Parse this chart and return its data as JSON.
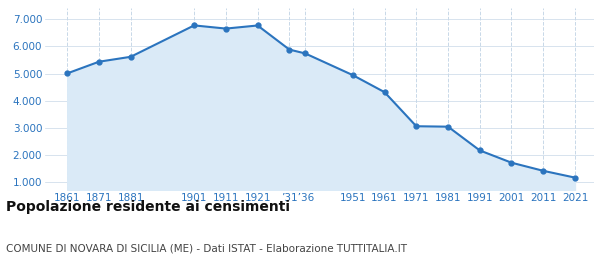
{
  "years": [
    1861,
    1871,
    1881,
    1901,
    1911,
    1921,
    1931,
    1936,
    1951,
    1961,
    1971,
    1981,
    1991,
    2001,
    2011,
    2021
  ],
  "population": [
    5007,
    5437,
    5618,
    6774,
    6657,
    6771,
    5884,
    5742,
    4943,
    4316,
    3062,
    3046,
    2172,
    1720,
    1421,
    1171
  ],
  "line_color": "#2b74be",
  "fill_color": "#daeaf7",
  "marker_color": "#2b74be",
  "background_color": "#ffffff",
  "grid_color": "#c8d8e8",
  "title": "Popolazione residente ai censimenti",
  "subtitle": "COMUNE DI NOVARA DI SICILIA (ME) - Dati ISTAT - Elaborazione TUTTITALIA.IT",
  "title_fontsize": 10,
  "subtitle_fontsize": 7.5,
  "ylabel_ticks": [
    1000,
    2000,
    3000,
    4000,
    5000,
    6000,
    7000
  ],
  "ylim": [
    700,
    7400
  ],
  "xlim": [
    1854,
    2027
  ]
}
